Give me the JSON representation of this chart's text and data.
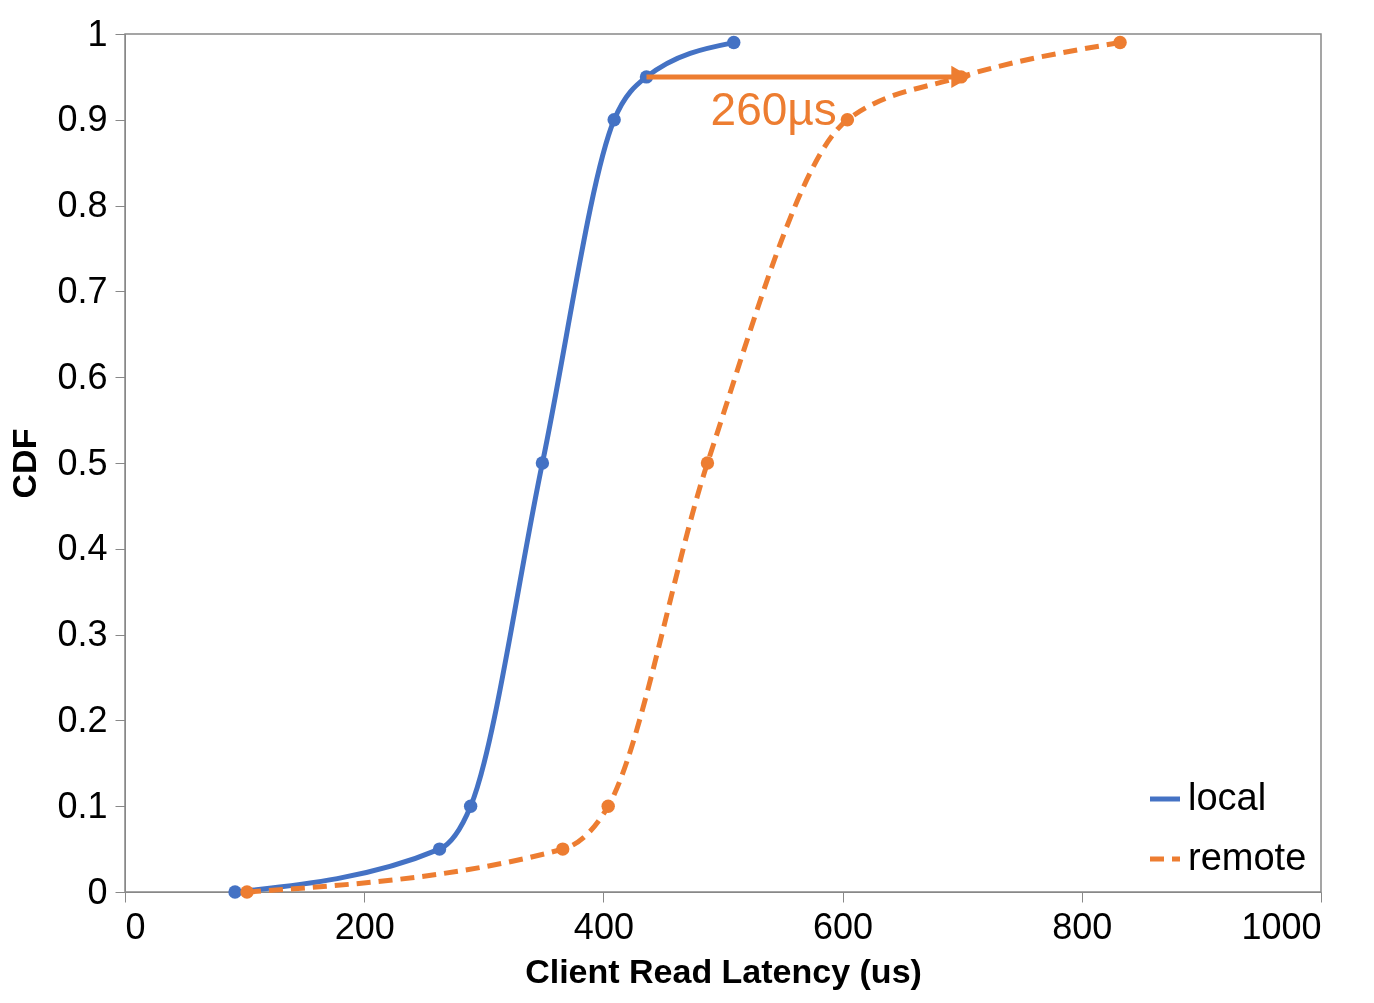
{
  "chart_data": {
    "type": "line",
    "xlabel": "Client Read Latency (us)",
    "ylabel": "CDF",
    "xlim": [
      0,
      1000
    ],
    "xticks": [
      0,
      200,
      400,
      600,
      800,
      1000
    ],
    "ylim": [
      0,
      1
    ],
    "yticks": [
      0,
      0.1,
      0.2,
      0.3,
      0.4,
      0.5,
      0.6,
      0.7,
      0.8,
      0.9,
      1
    ],
    "grid": false,
    "legend": "bottom right",
    "marker": "circle",
    "series": [
      {
        "name": "local",
        "color": "#4472c4",
        "line_style": "solid",
        "x": [
          92,
          263,
          289,
          349,
          409,
          436,
          509
        ],
        "values": [
          0,
          0.05,
          0.1,
          0.5,
          0.9,
          0.95,
          0.99
        ]
      },
      {
        "name": "remote",
        "color": "#ed7d31",
        "line_style": "dashed",
        "x": [
          102,
          366,
          404,
          487,
          604,
          699,
          832
        ],
        "values": [
          0,
          0.05,
          0.1,
          0.5,
          0.9,
          0.95,
          0.99
        ]
      }
    ],
    "annotations": [
      {
        "text": "260µs",
        "x": 699,
        "y": 0.95
      }
    ]
  }
}
